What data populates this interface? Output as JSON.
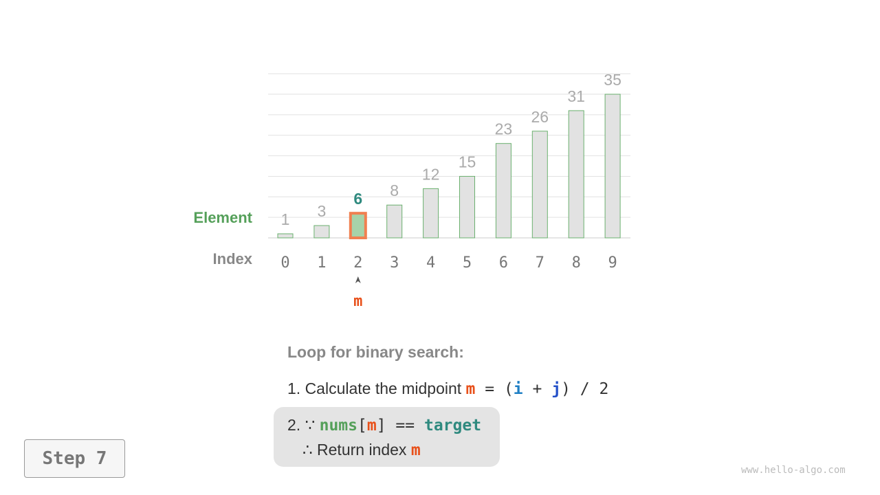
{
  "chart_data": {
    "type": "bar",
    "categories": [
      "0",
      "1",
      "2",
      "3",
      "4",
      "5",
      "6",
      "7",
      "8",
      "9"
    ],
    "values": [
      1,
      3,
      6,
      8,
      12,
      15,
      23,
      26,
      31,
      35
    ],
    "highlight_index": 2,
    "ylim": [
      0,
      40
    ],
    "grid": true,
    "row_labels": {
      "element": "Element",
      "index": "Index"
    },
    "pointer_label": "m",
    "colors": {
      "bar_fill": "#e2e2e2",
      "bar_stroke": "#6ab06e",
      "highlight_fill": "#a7d3a9",
      "highlight_stroke": "#f08050",
      "value_text": "#aaaaaa",
      "highlight_value": "#2f8a7f",
      "index_text": "#777777",
      "pointer": "#e8501a",
      "element_label": "#55a05a"
    }
  },
  "text": {
    "heading": "Loop for binary search:",
    "step1_prefix": "1. Calculate the midpoint ",
    "step1_m": "m",
    "step1_eq": " = (",
    "step1_i": "i",
    "step1_plus": " + ",
    "step1_j": "j",
    "step1_end": ") / 2",
    "step2_prefix": "2. ∵ ",
    "step2_nums": "nums",
    "step2_lb": "[",
    "step2_m": "m",
    "step2_rb": "]",
    "step2_eq": " == ",
    "step2_target": "target",
    "step3_prefix": "∴ Return index ",
    "step3_m": "m"
  },
  "step_label": "Step 7",
  "watermark": "www.hello-algo.com"
}
